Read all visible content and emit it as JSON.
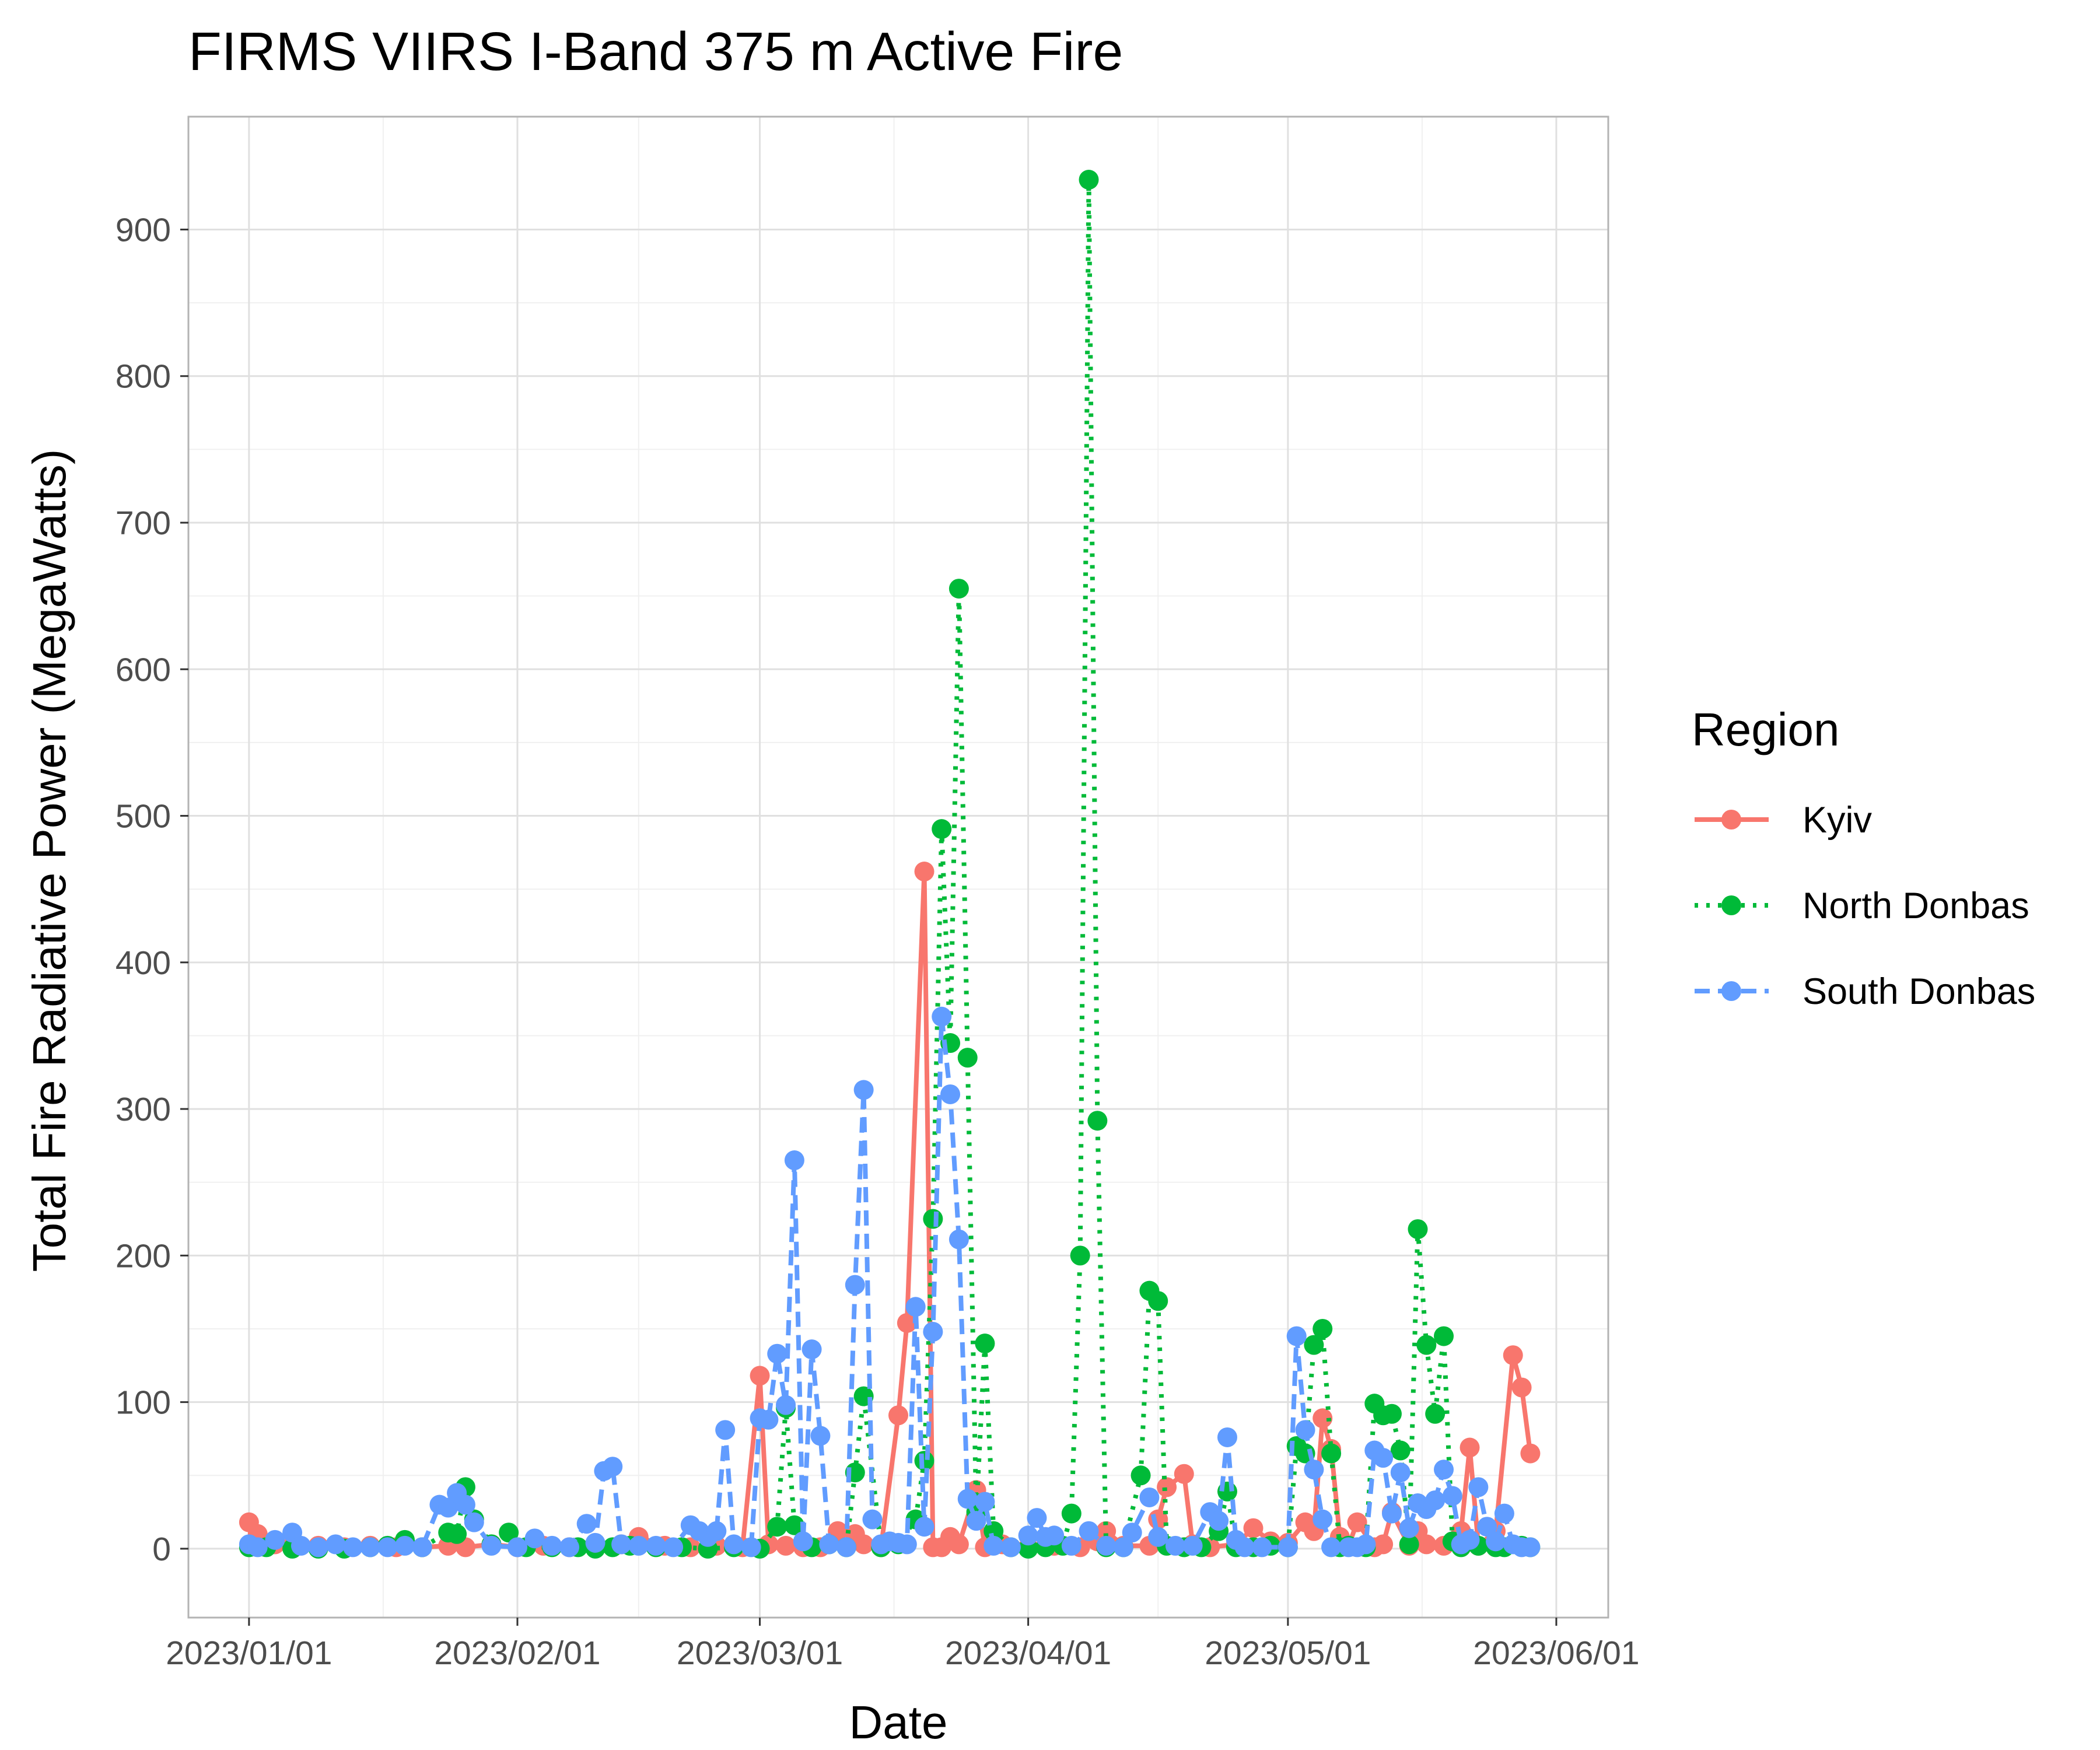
{
  "chart_data": {
    "type": "line",
    "title": "FIRMS VIIRS I-Band 375 m Active Fire",
    "xlabel": "Date",
    "ylabel": "Total Fire Radiative Power (MegaWatts)",
    "x_ticks": [
      "2023/01/01",
      "2023/02/01",
      "2023/03/01",
      "2023/04/01",
      "2023/05/01",
      "2023/06/01"
    ],
    "y_ticks": [
      "0",
      "100",
      "200",
      "300",
      "400",
      "500",
      "600",
      "700",
      "800",
      "900"
    ],
    "xlim": [
      "2022-12-25",
      "2023-06-07"
    ],
    "ylim": [
      -47,
      977
    ],
    "grid": true,
    "legend": {
      "title": "Region",
      "placement": "right"
    },
    "series": [
      {
        "name": "Kyiv",
        "color": "#F8766D",
        "dash": "solid",
        "points": [
          [
            "2023-01-01",
            18
          ],
          [
            "2023-01-02",
            10
          ],
          [
            "2023-01-04",
            3
          ],
          [
            "2023-01-06",
            2
          ],
          [
            "2023-01-09",
            2
          ],
          [
            "2023-01-12",
            1
          ],
          [
            "2023-01-15",
            2
          ],
          [
            "2023-01-18",
            1
          ],
          [
            "2023-01-21",
            1
          ],
          [
            "2023-01-24",
            2
          ],
          [
            "2023-01-26",
            1
          ],
          [
            "2023-01-29",
            3
          ],
          [
            "2023-02-01",
            1
          ],
          [
            "2023-02-04",
            2
          ],
          [
            "2023-02-07",
            1
          ],
          [
            "2023-02-10",
            2
          ],
          [
            "2023-02-13",
            3
          ],
          [
            "2023-02-15",
            8
          ],
          [
            "2023-02-18",
            2
          ],
          [
            "2023-02-21",
            1
          ],
          [
            "2023-02-24",
            2
          ],
          [
            "2023-02-27",
            1
          ],
          [
            "2023-03-01",
            118
          ],
          [
            "2023-03-02",
            3
          ],
          [
            "2023-03-04",
            2
          ],
          [
            "2023-03-06",
            1
          ],
          [
            "2023-03-08",
            1
          ],
          [
            "2023-03-10",
            12
          ],
          [
            "2023-03-12",
            10
          ],
          [
            "2023-03-13",
            3
          ],
          [
            "2023-03-15",
            1
          ],
          [
            "2023-03-17",
            91
          ],
          [
            "2023-03-18",
            154
          ],
          [
            "2023-03-20",
            462
          ],
          [
            "2023-03-21",
            1
          ],
          [
            "2023-03-22",
            1
          ],
          [
            "2023-03-23",
            8
          ],
          [
            "2023-03-24",
            3
          ],
          [
            "2023-03-26",
            40
          ],
          [
            "2023-03-27",
            1
          ],
          [
            "2023-03-29",
            3
          ],
          [
            "2023-04-01",
            1
          ],
          [
            "2023-04-04",
            2
          ],
          [
            "2023-04-07",
            1
          ],
          [
            "2023-04-09",
            5
          ],
          [
            "2023-04-10",
            12
          ],
          [
            "2023-04-12",
            2
          ],
          [
            "2023-04-15",
            2
          ],
          [
            "2023-04-16",
            20
          ],
          [
            "2023-04-17",
            42
          ],
          [
            "2023-04-19",
            51
          ],
          [
            "2023-04-20",
            3
          ],
          [
            "2023-04-22",
            1
          ],
          [
            "2023-04-25",
            3
          ],
          [
            "2023-04-27",
            14
          ],
          [
            "2023-04-29",
            5
          ],
          [
            "2023-05-01",
            4
          ],
          [
            "2023-05-03",
            18
          ],
          [
            "2023-05-04",
            12
          ],
          [
            "2023-05-05",
            89
          ],
          [
            "2023-05-06",
            68
          ],
          [
            "2023-05-07",
            8
          ],
          [
            "2023-05-08",
            2
          ],
          [
            "2023-05-09",
            18
          ],
          [
            "2023-05-11",
            1
          ],
          [
            "2023-05-12",
            3
          ],
          [
            "2023-05-13",
            25
          ],
          [
            "2023-05-15",
            2
          ],
          [
            "2023-05-16",
            12
          ],
          [
            "2023-05-17",
            3
          ],
          [
            "2023-05-19",
            2
          ],
          [
            "2023-05-21",
            12
          ],
          [
            "2023-05-22",
            69
          ],
          [
            "2023-05-23",
            2
          ],
          [
            "2023-05-25",
            12
          ],
          [
            "2023-05-27",
            132
          ],
          [
            "2023-05-28",
            110
          ],
          [
            "2023-05-29",
            65
          ]
        ]
      },
      {
        "name": "North Donbas",
        "color": "#00BA38",
        "dash": "dotted",
        "points": [
          [
            "2023-01-01",
            1
          ],
          [
            "2023-01-03",
            1
          ],
          [
            "2023-01-06",
            0
          ],
          [
            "2023-01-09",
            0
          ],
          [
            "2023-01-12",
            0
          ],
          [
            "2023-01-15",
            1
          ],
          [
            "2023-01-17",
            2
          ],
          [
            "2023-01-19",
            6
          ],
          [
            "2023-01-21",
            1
          ],
          [
            "2023-01-24",
            11
          ],
          [
            "2023-01-25",
            10
          ],
          [
            "2023-01-26",
            42
          ],
          [
            "2023-01-27",
            20
          ],
          [
            "2023-01-29",
            3
          ],
          [
            "2023-01-31",
            11
          ],
          [
            "2023-02-02",
            1
          ],
          [
            "2023-02-05",
            1
          ],
          [
            "2023-02-08",
            1
          ],
          [
            "2023-02-10",
            0
          ],
          [
            "2023-02-12",
            1
          ],
          [
            "2023-02-14",
            2
          ],
          [
            "2023-02-17",
            1
          ],
          [
            "2023-02-20",
            1
          ],
          [
            "2023-02-23",
            0
          ],
          [
            "2023-02-26",
            1
          ],
          [
            "2023-03-01",
            0
          ],
          [
            "2023-03-03",
            15
          ],
          [
            "2023-03-04",
            96
          ],
          [
            "2023-03-05",
            16
          ],
          [
            "2023-03-07",
            1
          ],
          [
            "2023-03-09",
            3
          ],
          [
            "2023-03-11",
            1
          ],
          [
            "2023-03-12",
            52
          ],
          [
            "2023-03-13",
            104
          ],
          [
            "2023-03-15",
            1
          ],
          [
            "2023-03-17",
            3
          ],
          [
            "2023-03-19",
            20
          ],
          [
            "2023-03-20",
            60
          ],
          [
            "2023-03-21",
            225
          ],
          [
            "2023-03-22",
            491
          ],
          [
            "2023-03-23",
            345
          ],
          [
            "2023-03-24",
            655
          ],
          [
            "2023-03-25",
            335
          ],
          [
            "2023-03-26",
            25
          ],
          [
            "2023-03-27",
            140
          ],
          [
            "2023-03-28",
            12
          ],
          [
            "2023-03-30",
            1
          ],
          [
            "2023-04-01",
            0
          ],
          [
            "2023-04-03",
            1
          ],
          [
            "2023-04-05",
            2
          ],
          [
            "2023-04-06",
            24
          ],
          [
            "2023-04-07",
            200
          ],
          [
            "2023-04-08",
            934
          ],
          [
            "2023-04-09",
            292
          ],
          [
            "2023-04-10",
            1
          ],
          [
            "2023-04-12",
            1
          ],
          [
            "2023-04-14",
            50
          ],
          [
            "2023-04-15",
            176
          ],
          [
            "2023-04-16",
            169
          ],
          [
            "2023-04-17",
            2
          ],
          [
            "2023-04-19",
            1
          ],
          [
            "2023-04-21",
            1
          ],
          [
            "2023-04-23",
            12
          ],
          [
            "2023-04-24",
            39
          ],
          [
            "2023-04-25",
            1
          ],
          [
            "2023-04-27",
            1
          ],
          [
            "2023-04-29",
            2
          ],
          [
            "2023-05-01",
            1
          ],
          [
            "2023-05-02",
            70
          ],
          [
            "2023-05-03",
            65
          ],
          [
            "2023-05-04",
            139
          ],
          [
            "2023-05-05",
            150
          ],
          [
            "2023-05-06",
            65
          ],
          [
            "2023-05-07",
            1
          ],
          [
            "2023-05-08",
            2
          ],
          [
            "2023-05-10",
            1
          ],
          [
            "2023-05-11",
            99
          ],
          [
            "2023-05-12",
            91
          ],
          [
            "2023-05-13",
            92
          ],
          [
            "2023-05-14",
            67
          ],
          [
            "2023-05-15",
            3
          ],
          [
            "2023-05-16",
            218
          ],
          [
            "2023-05-17",
            139
          ],
          [
            "2023-05-18",
            92
          ],
          [
            "2023-05-19",
            145
          ],
          [
            "2023-05-20",
            5
          ],
          [
            "2023-05-21",
            1
          ],
          [
            "2023-05-23",
            2
          ],
          [
            "2023-05-25",
            1
          ],
          [
            "2023-05-26",
            1
          ],
          [
            "2023-05-28",
            2
          ],
          [
            "2023-05-29",
            1
          ]
        ]
      },
      {
        "name": "South Donbas",
        "color": "#619CFF",
        "dash": "dashed",
        "points": [
          [
            "2023-01-01",
            3
          ],
          [
            "2023-01-02",
            1
          ],
          [
            "2023-01-04",
            6
          ],
          [
            "2023-01-06",
            11
          ],
          [
            "2023-01-07",
            2
          ],
          [
            "2023-01-09",
            1
          ],
          [
            "2023-01-11",
            3
          ],
          [
            "2023-01-13",
            1
          ],
          [
            "2023-01-15",
            1
          ],
          [
            "2023-01-17",
            1
          ],
          [
            "2023-01-19",
            2
          ],
          [
            "2023-01-21",
            1
          ],
          [
            "2023-01-23",
            30
          ],
          [
            "2023-01-24",
            28
          ],
          [
            "2023-01-25",
            38
          ],
          [
            "2023-01-26",
            30
          ],
          [
            "2023-01-27",
            18
          ],
          [
            "2023-01-29",
            2
          ],
          [
            "2023-02-01",
            1
          ],
          [
            "2023-02-03",
            7
          ],
          [
            "2023-02-05",
            2
          ],
          [
            "2023-02-07",
            1
          ],
          [
            "2023-02-09",
            17
          ],
          [
            "2023-02-10",
            4
          ],
          [
            "2023-02-11",
            53
          ],
          [
            "2023-02-12",
            56
          ],
          [
            "2023-02-13",
            3
          ],
          [
            "2023-02-15",
            2
          ],
          [
            "2023-02-17",
            2
          ],
          [
            "2023-02-19",
            1
          ],
          [
            "2023-02-21",
            16
          ],
          [
            "2023-02-22",
            12
          ],
          [
            "2023-02-23",
            8
          ],
          [
            "2023-02-24",
            12
          ],
          [
            "2023-02-25",
            81
          ],
          [
            "2023-02-26",
            3
          ],
          [
            "2023-02-28",
            1
          ],
          [
            "2023-03-01",
            89
          ],
          [
            "2023-03-02",
            88
          ],
          [
            "2023-03-03",
            133
          ],
          [
            "2023-03-04",
            98
          ],
          [
            "2023-03-05",
            265
          ],
          [
            "2023-03-06",
            5
          ],
          [
            "2023-03-07",
            136
          ],
          [
            "2023-03-08",
            77
          ],
          [
            "2023-03-09",
            3
          ],
          [
            "2023-03-11",
            1
          ],
          [
            "2023-03-12",
            180
          ],
          [
            "2023-03-13",
            313
          ],
          [
            "2023-03-14",
            20
          ],
          [
            "2023-03-15",
            3
          ],
          [
            "2023-03-16",
            5
          ],
          [
            "2023-03-17",
            4
          ],
          [
            "2023-03-18",
            3
          ],
          [
            "2023-03-19",
            165
          ],
          [
            "2023-03-20",
            15
          ],
          [
            "2023-03-21",
            148
          ],
          [
            "2023-03-22",
            363
          ],
          [
            "2023-03-23",
            310
          ],
          [
            "2023-03-24",
            211
          ],
          [
            "2023-03-25",
            34
          ],
          [
            "2023-03-26",
            19
          ],
          [
            "2023-03-27",
            32
          ],
          [
            "2023-03-28",
            2
          ],
          [
            "2023-03-30",
            1
          ],
          [
            "2023-04-01",
            9
          ],
          [
            "2023-04-02",
            21
          ],
          [
            "2023-04-03",
            8
          ],
          [
            "2023-04-04",
            9
          ],
          [
            "2023-04-06",
            2
          ],
          [
            "2023-04-08",
            12
          ],
          [
            "2023-04-10",
            2
          ],
          [
            "2023-04-12",
            1
          ],
          [
            "2023-04-13",
            11
          ],
          [
            "2023-04-15",
            35
          ],
          [
            "2023-04-16",
            8
          ],
          [
            "2023-04-18",
            2
          ],
          [
            "2023-04-20",
            2
          ],
          [
            "2023-04-22",
            25
          ],
          [
            "2023-04-23",
            19
          ],
          [
            "2023-04-24",
            76
          ],
          [
            "2023-04-25",
            6
          ],
          [
            "2023-04-26",
            1
          ],
          [
            "2023-04-28",
            1
          ],
          [
            "2023-05-01",
            1
          ],
          [
            "2023-05-02",
            145
          ],
          [
            "2023-05-03",
            81
          ],
          [
            "2023-05-04",
            54
          ],
          [
            "2023-05-05",
            20
          ],
          [
            "2023-05-06",
            1
          ],
          [
            "2023-05-08",
            1
          ],
          [
            "2023-05-09",
            1
          ],
          [
            "2023-05-10",
            3
          ],
          [
            "2023-05-11",
            67
          ],
          [
            "2023-05-12",
            62
          ],
          [
            "2023-05-13",
            24
          ],
          [
            "2023-05-14",
            52
          ],
          [
            "2023-05-15",
            14
          ],
          [
            "2023-05-16",
            31
          ],
          [
            "2023-05-17",
            27
          ],
          [
            "2023-05-18",
            33
          ],
          [
            "2023-05-19",
            54
          ],
          [
            "2023-05-20",
            36
          ],
          [
            "2023-05-21",
            3
          ],
          [
            "2023-05-22",
            6
          ],
          [
            "2023-05-23",
            42
          ],
          [
            "2023-05-24",
            15
          ],
          [
            "2023-05-25",
            5
          ],
          [
            "2023-05-26",
            24
          ],
          [
            "2023-05-27",
            3
          ],
          [
            "2023-05-28",
            1
          ],
          [
            "2023-05-29",
            1
          ]
        ]
      }
    ]
  }
}
